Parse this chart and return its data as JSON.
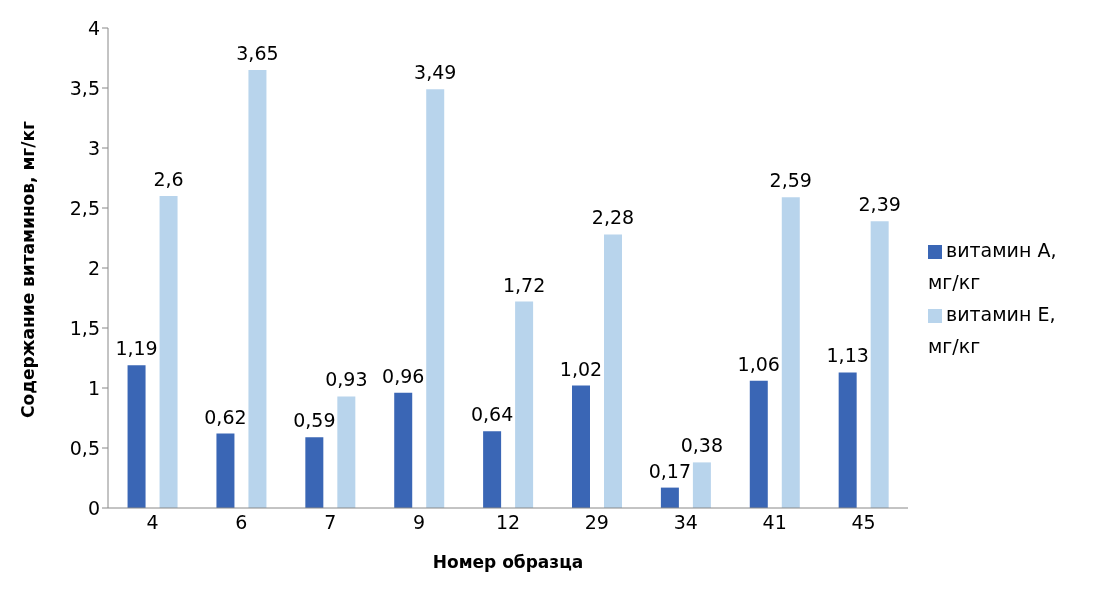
{
  "chart_data": {
    "type": "bar",
    "xlabel": "Номер образца",
    "ylabel": "Содержание витаминов, мг/кг",
    "categories": [
      "4",
      "6",
      "7",
      "9",
      "12",
      "29",
      "34",
      "41",
      "45"
    ],
    "series": [
      {
        "name": "витамин  А, мг/кг",
        "color": "#3a66b5",
        "values": [
          1.19,
          0.62,
          0.59,
          0.96,
          0.64,
          1.02,
          0.17,
          1.06,
          1.13
        ],
        "value_labels": [
          "1,19",
          "0,62",
          "0,59",
          "0,96",
          "0,64",
          "1,02",
          "0,17",
          "1,06",
          "1,13"
        ]
      },
      {
        "name": "витамин Е, мг/кг",
        "color": "#b8d4ec",
        "values": [
          2.6,
          3.65,
          0.93,
          3.49,
          1.72,
          2.28,
          0.38,
          2.59,
          2.39
        ],
        "value_labels": [
          "2,6",
          "3,65",
          "0,93",
          "3,49",
          "1,72",
          "2,28",
          "0,38",
          "2,59",
          "2,39"
        ]
      }
    ],
    "ylim": [
      0,
      4
    ],
    "yticks": [
      0,
      {
        "value": 0.5,
        "label": "0,5"
      },
      1,
      {
        "value": 1.5,
        "label": "1,5"
      },
      2,
      {
        "value": 2.5,
        "label": "2,5"
      },
      3,
      {
        "value": 3.5,
        "label": "3,5"
      },
      4
    ],
    "grid": false,
    "legend": "right"
  }
}
